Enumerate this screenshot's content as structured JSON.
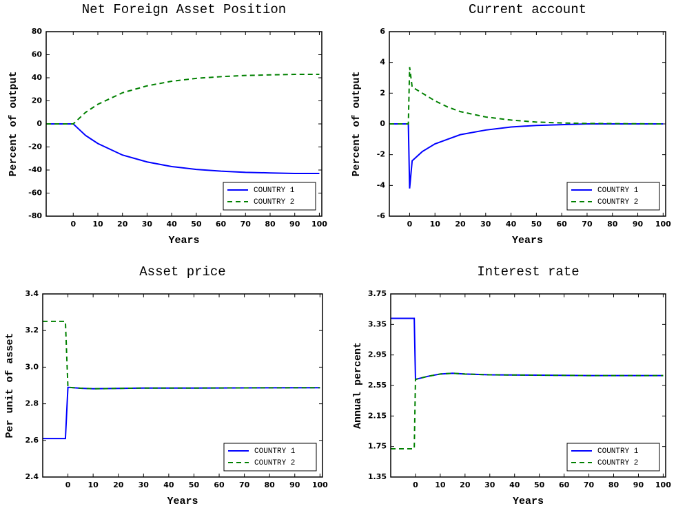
{
  "chart_data": [
    {
      "type": "line",
      "title": "Net Foreign Asset Position",
      "xlabel": "Years",
      "ylabel": "Percent of output",
      "x": [
        -11,
        0,
        2,
        5,
        10,
        15,
        20,
        30,
        40,
        50,
        60,
        70,
        80,
        90,
        100
      ],
      "series": [
        {
          "name": "COUNTRY 1",
          "color": "#0000ff",
          "line_style": "solid",
          "values": [
            0,
            0,
            -4,
            -10,
            -17,
            -22,
            -27,
            -33,
            -37,
            -39.5,
            -41,
            -42,
            -42.5,
            -43,
            -43
          ]
        },
        {
          "name": "COUNTRY 2",
          "color": "#008000",
          "line_style": "dashed",
          "values": [
            0,
            0,
            4,
            10,
            17,
            22,
            27,
            33,
            37,
            39.5,
            41,
            42,
            42.5,
            43,
            43
          ]
        }
      ],
      "xlim": [
        -11,
        101
      ],
      "xticks": [
        0,
        10,
        20,
        30,
        40,
        50,
        60,
        70,
        80,
        90,
        100
      ],
      "ylim": [
        -80,
        80
      ],
      "yticks": [
        -80,
        -60,
        -40,
        -20,
        0,
        20,
        40,
        60,
        80
      ],
      "legend": "lower right"
    },
    {
      "type": "line",
      "title": "Current account",
      "xlabel": "Years",
      "ylabel": "Percent of output",
      "x": [
        -8,
        -0.5,
        0,
        1,
        5,
        10,
        15,
        20,
        30,
        40,
        50,
        60,
        70,
        80,
        90,
        100
      ],
      "series": [
        {
          "name": "COUNTRY 1",
          "color": "#0000ff",
          "line_style": "solid",
          "values": [
            0,
            0,
            -4.2,
            -2.4,
            -1.8,
            -1.3,
            -1,
            -0.7,
            -0.4,
            -0.2,
            -0.1,
            -0.05,
            0,
            0,
            0,
            0
          ]
        },
        {
          "name": "COUNTRY 2",
          "color": "#008000",
          "line_style": "dashed",
          "values": [
            0,
            0,
            3.7,
            2.4,
            2,
            1.5,
            1.1,
            0.8,
            0.45,
            0.25,
            0.12,
            0.06,
            0.03,
            0.02,
            0.01,
            0
          ]
        }
      ],
      "xlim": [
        -8,
        101
      ],
      "xticks": [
        0,
        10,
        20,
        30,
        40,
        50,
        60,
        70,
        80,
        90,
        100
      ],
      "ylim": [
        -6,
        6
      ],
      "yticks": [
        -6,
        -4,
        -2,
        0,
        2,
        4,
        6
      ],
      "legend": "lower right"
    },
    {
      "type": "line",
      "title": "Asset price",
      "xlabel": "Years",
      "ylabel": "Per unit of asset",
      "x": [
        -10,
        -1,
        0,
        5,
        10,
        20,
        30,
        50,
        70,
        100
      ],
      "series": [
        {
          "name": "COUNTRY 1",
          "color": "#0000ff",
          "line_style": "solid",
          "values": [
            2.61,
            2.61,
            2.89,
            2.885,
            2.882,
            2.884,
            2.886,
            2.886,
            2.887,
            2.888
          ]
        },
        {
          "name": "COUNTRY 2",
          "color": "#008000",
          "line_style": "dashed",
          "values": [
            3.25,
            3.25,
            2.89,
            2.885,
            2.882,
            2.884,
            2.886,
            2.886,
            2.887,
            2.888
          ]
        }
      ],
      "xlim": [
        -10,
        101
      ],
      "xticks": [
        0,
        10,
        20,
        30,
        40,
        50,
        60,
        70,
        80,
        90,
        100
      ],
      "ylim": [
        2.4,
        3.4
      ],
      "yticks": [
        2.4,
        2.6,
        2.8,
        {
          "value": 3,
          "label": "3.0"
        },
        3.2,
        3.4
      ],
      "legend": "lower right"
    },
    {
      "type": "line",
      "title": "Interest rate",
      "xlabel": "Years",
      "ylabel": "Annual percent",
      "x": [
        -10,
        -0.5,
        0,
        5,
        10,
        15,
        20,
        30,
        50,
        70,
        100
      ],
      "series": [
        {
          "name": "COUNTRY 1",
          "color": "#0000ff",
          "line_style": "solid",
          "values": [
            3.43,
            3.43,
            2.63,
            2.67,
            2.7,
            2.71,
            2.7,
            2.69,
            2.685,
            2.68,
            2.68
          ]
        },
        {
          "name": "COUNTRY 2",
          "color": "#008000",
          "line_style": "dashed",
          "values": [
            1.72,
            1.72,
            2.63,
            2.67,
            2.7,
            2.71,
            2.7,
            2.69,
            2.685,
            2.68,
            2.68
          ]
        }
      ],
      "xlim": [
        -10,
        101
      ],
      "xticks": [
        0,
        10,
        20,
        30,
        40,
        50,
        60,
        70,
        80,
        90,
        100
      ],
      "ylim": [
        1.35,
        3.75
      ],
      "yticks": [
        1.35,
        1.75,
        2.15,
        2.55,
        2.95,
        3.35,
        3.75
      ],
      "legend": "lower right"
    }
  ]
}
